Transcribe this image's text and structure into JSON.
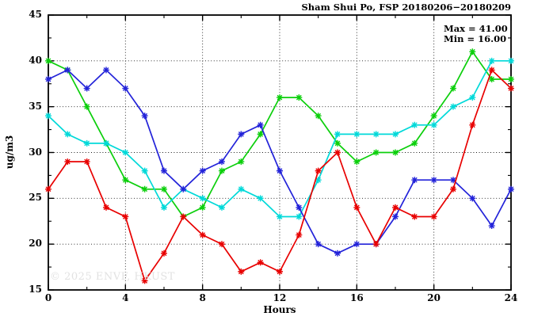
{
  "header": {
    "title": "Sham Shui Po, FSP 20180206−20180209"
  },
  "legend": {
    "max_label": "Max = 41.00",
    "min_label": "Min = 16.00"
  },
  "watermark": "© 2025  ENVF, HKUST",
  "axes": {
    "xlabel": "Hours",
    "ylabel": "ug/m3"
  },
  "chart_data": {
    "type": "line",
    "title": "Sham Shui Po, FSP 20180206−20180209",
    "xlabel": "Hours",
    "ylabel": "ug/m3",
    "xlim": [
      0,
      24
    ],
    "ylim": [
      15,
      45
    ],
    "x_major_ticks": [
      0,
      4,
      8,
      12,
      16,
      20,
      24
    ],
    "x_minor_ticks": [
      2,
      6,
      10,
      14,
      18,
      22
    ],
    "y_major_ticks": [
      15,
      20,
      25,
      30,
      35,
      40,
      45
    ],
    "y_minor_ticks": [
      17.5,
      22.5,
      27.5,
      32.5,
      37.5,
      42.5
    ],
    "grid": "dotted-at-major-ticks",
    "legend_position": "top-right-inside",
    "annotations": {
      "max": 41.0,
      "min": 16.0
    },
    "x": [
      0,
      1,
      2,
      3,
      4,
      5,
      6,
      7,
      8,
      9,
      10,
      11,
      12,
      13,
      14,
      15,
      16,
      17,
      18,
      19,
      20,
      21,
      22,
      23,
      24
    ],
    "series": [
      {
        "name": "green",
        "color": "#0ccf0c",
        "marker": "asterisk",
        "values": [
          40,
          39,
          35,
          31,
          27,
          26,
          26,
          23,
          24,
          28,
          29,
          32,
          36,
          36,
          34,
          31,
          29,
          30,
          30,
          31,
          34,
          37,
          41,
          38,
          38
        ]
      },
      {
        "name": "cyan",
        "color": "#00d9d9",
        "marker": "asterisk",
        "values": [
          34,
          32,
          31,
          31,
          30,
          28,
          24,
          26,
          25,
          24,
          26,
          25,
          23,
          23,
          27,
          32,
          32,
          32,
          32,
          33,
          33,
          35,
          36,
          40,
          40
        ]
      },
      {
        "name": "blue",
        "color": "#2323d9",
        "marker": "asterisk",
        "values": [
          38,
          39,
          37,
          39,
          37,
          34,
          28,
          26,
          28,
          29,
          32,
          33,
          28,
          24,
          20,
          19,
          20,
          20,
          23,
          27,
          27,
          27,
          25,
          22,
          26
        ]
      },
      {
        "name": "red",
        "color": "#e80000",
        "marker": "asterisk",
        "values": [
          26,
          29,
          29,
          24,
          23,
          16,
          19,
          23,
          21,
          20,
          17,
          18,
          17,
          21,
          28,
          30,
          24,
          20,
          24,
          23,
          23,
          26,
          33,
          39,
          37
        ]
      }
    ]
  }
}
